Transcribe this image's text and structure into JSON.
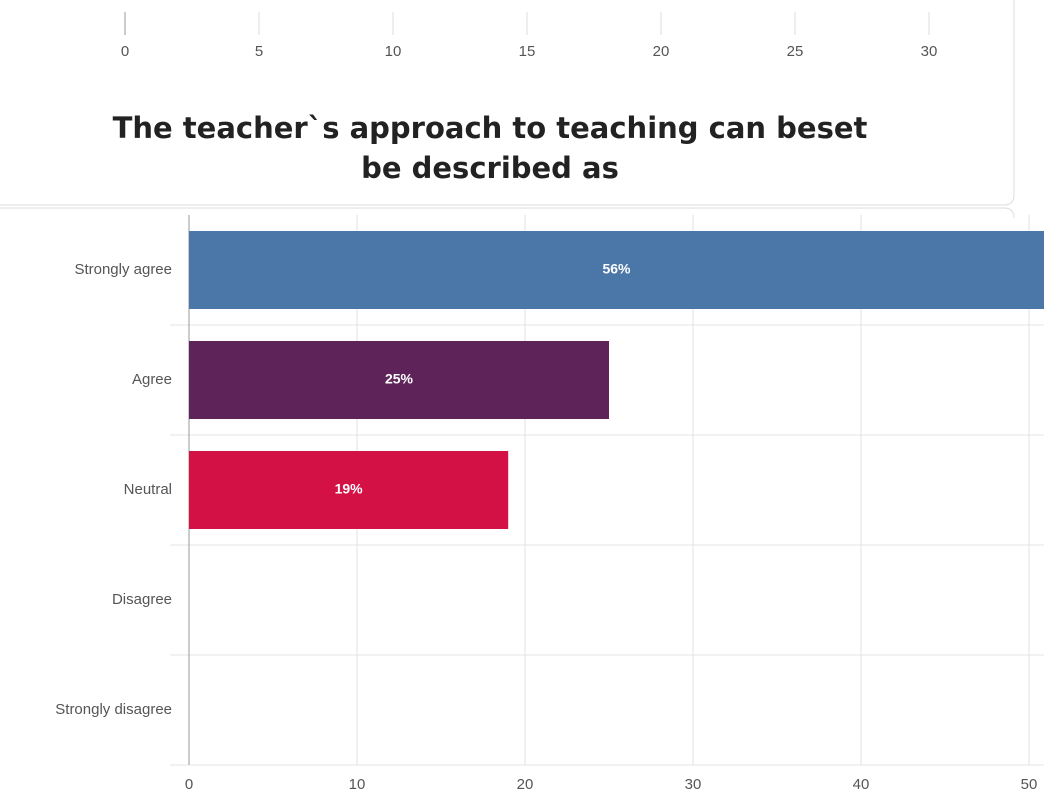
{
  "chart_data": [
    {
      "type": "axis",
      "xlim": [
        0,
        30
      ],
      "xticks": [
        0,
        5,
        10,
        15,
        20,
        25,
        30
      ]
    },
    {
      "type": "hbar",
      "title": "The teacher`s approach to teaching can beset be described as",
      "categories": [
        "Strongly agree",
        "Agree",
        "Neutral",
        "Disagree",
        "Strongly disagree"
      ],
      "values": [
        56,
        25,
        19,
        0,
        0
      ],
      "value_labels": [
        "56%",
        "25%",
        "19%",
        null,
        null
      ],
      "colors": [
        "#4a76a8",
        "#5e2459",
        "#d31145",
        "#4a76a8",
        "#4a76a8"
      ],
      "xlim": [
        0,
        50
      ],
      "xticks": [
        0,
        10,
        20,
        30,
        40,
        50
      ],
      "grid": true
    }
  ]
}
